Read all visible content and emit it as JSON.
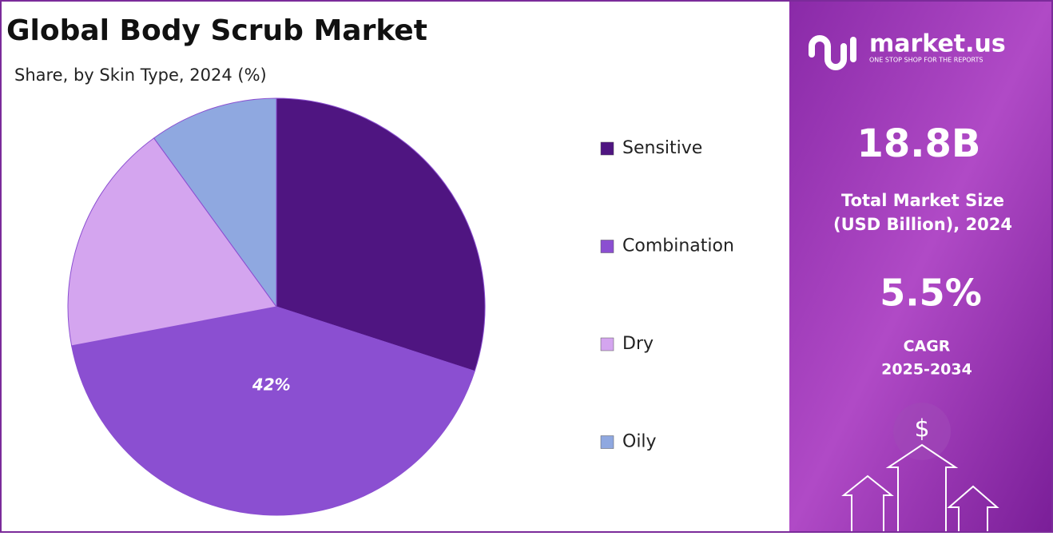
{
  "chart_data": {
    "type": "pie",
    "title": "Global Body Scrub Market",
    "subtitle": "Share, by Skin Type, 2024 (%)",
    "categories": [
      "Sensitive",
      "Combination",
      "Dry",
      "Oily"
    ],
    "values": [
      30,
      42,
      18,
      10
    ],
    "value_labels": [
      null,
      "42%",
      null,
      null
    ],
    "colors": [
      "#4f1581",
      "#8b4fd1",
      "#d4a5ef",
      "#8fa8e0"
    ],
    "legend": "right"
  },
  "side_panel": {
    "brand": "market.us",
    "tagline": "ONE STOP SHOP FOR THE REPORTS",
    "market_size": "18.8B",
    "market_size_label": [
      "Total Market Size",
      "(USD Billion), 2024"
    ],
    "cagr": "5.5%",
    "cagr_label": [
      "CAGR",
      "2025-2034"
    ],
    "icon": "$"
  }
}
